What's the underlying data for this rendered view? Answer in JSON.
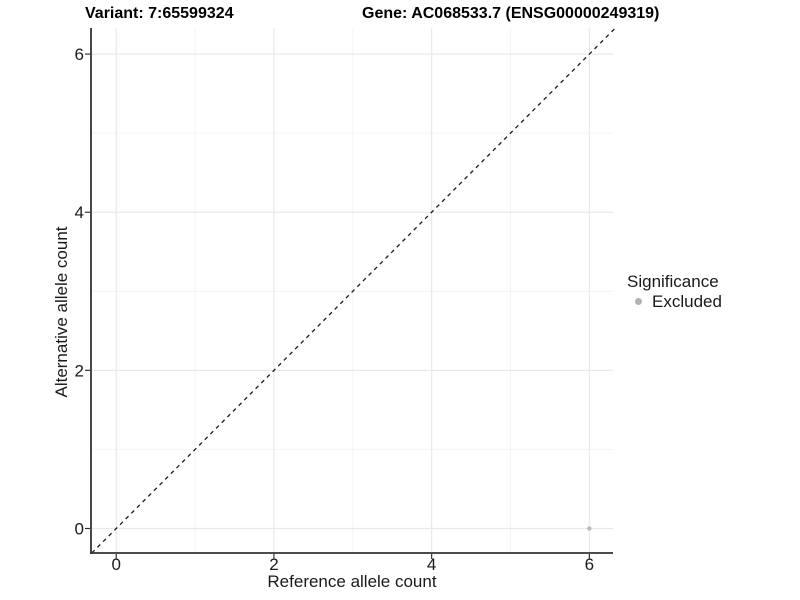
{
  "chart_data": {
    "type": "scatter",
    "title_left": "Variant: 7:65599324",
    "title_right": "Gene: AC068533.7 (ENSG00000249319)",
    "xlabel": "Reference allele count",
    "ylabel": "Alternative allele count",
    "xlim": [
      -0.32,
      6.3
    ],
    "ylim": [
      -0.31,
      6.33
    ],
    "x_ticks": [
      0,
      2,
      4,
      6
    ],
    "y_ticks": [
      0,
      2,
      4,
      6
    ],
    "x_minor_ticks": [
      1,
      3,
      5
    ],
    "y_minor_ticks": [
      1,
      3,
      5
    ],
    "grid": true,
    "points": [
      {
        "x": 6,
        "y": 0,
        "series": "Excluded"
      }
    ],
    "identity_line": {
      "style": "dashed",
      "equation": "y = x"
    },
    "legend": {
      "title": "Significance",
      "position": "right",
      "entries": [
        {
          "label": "Excluded",
          "color": "#b3b3b3"
        }
      ]
    },
    "colors": {
      "point": "#b9b9b9",
      "grid_major": "#e9e9e9",
      "grid_minor": "#f4f4f4",
      "axis": "#333333",
      "text": "#1a1a1a",
      "identity_line": "#1a1a1a",
      "background": "#ffffff"
    }
  }
}
